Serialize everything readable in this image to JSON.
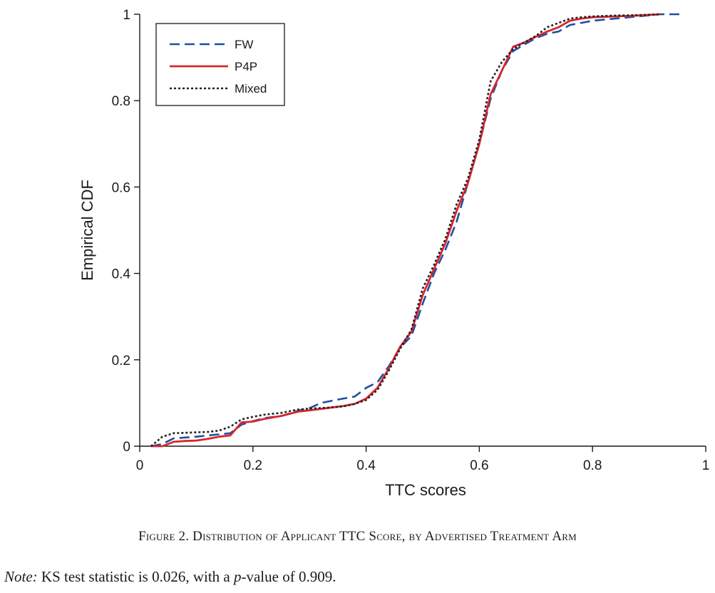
{
  "figure": {
    "caption": "Figure 2. Distribution of Applicant TTC Score, by Advertised Treatment Arm",
    "note_label": "Note:",
    "note_text_1": " KS test statistic is 0.026, with a ",
    "note_p": "p",
    "note_text_2": "-value of 0.909."
  },
  "chart_data": {
    "type": "line",
    "title": "",
    "xlabel": "TTC scores",
    "ylabel": "Empirical CDF",
    "xlim": [
      0,
      1
    ],
    "ylim": [
      0,
      1
    ],
    "xticks": [
      0,
      0.2,
      0.4,
      0.6,
      0.8,
      1
    ],
    "xtick_labels": [
      "0",
      "0.2",
      "0.4",
      "0.6",
      "0.8",
      "1"
    ],
    "yticks": [
      0,
      0.2,
      0.4,
      0.6,
      0.8,
      1
    ],
    "ytick_labels": [
      "0",
      "0.2",
      "0.4",
      "0.6",
      "0.8",
      "1"
    ],
    "grid": false,
    "legend_position": "top-left",
    "series": [
      {
        "name": "FW",
        "color": "#1f4fa3",
        "style": "dashed",
        "x": [
          0.02,
          0.04,
          0.06,
          0.1,
          0.13,
          0.16,
          0.18,
          0.2,
          0.22,
          0.25,
          0.28,
          0.3,
          0.32,
          0.35,
          0.38,
          0.4,
          0.42,
          0.44,
          0.46,
          0.48,
          0.5,
          0.52,
          0.54,
          0.56,
          0.58,
          0.6,
          0.62,
          0.64,
          0.66,
          0.68,
          0.7,
          0.72,
          0.74,
          0.76,
          0.78,
          0.8,
          0.84,
          0.88,
          0.92,
          0.96
        ],
        "y": [
          0.0,
          0.005,
          0.018,
          0.022,
          0.026,
          0.03,
          0.05,
          0.058,
          0.065,
          0.07,
          0.082,
          0.088,
          0.1,
          0.108,
          0.115,
          0.135,
          0.148,
          0.185,
          0.228,
          0.255,
          0.33,
          0.4,
          0.455,
          0.52,
          0.61,
          0.7,
          0.805,
          0.87,
          0.915,
          0.93,
          0.945,
          0.955,
          0.96,
          0.975,
          0.98,
          0.985,
          0.99,
          0.995,
          1.0,
          1.0
        ]
      },
      {
        "name": "P4P",
        "color": "#d8262e",
        "style": "solid",
        "x": [
          0.02,
          0.04,
          0.06,
          0.08,
          0.1,
          0.12,
          0.14,
          0.16,
          0.18,
          0.2,
          0.22,
          0.25,
          0.28,
          0.3,
          0.33,
          0.36,
          0.38,
          0.4,
          0.42,
          0.44,
          0.46,
          0.48,
          0.5,
          0.52,
          0.54,
          0.56,
          0.58,
          0.6,
          0.62,
          0.64,
          0.66,
          0.68,
          0.7,
          0.72,
          0.74,
          0.76,
          0.78,
          0.8,
          0.84,
          0.88,
          0.92
        ],
        "y": [
          0.0,
          0.0,
          0.01,
          0.012,
          0.013,
          0.017,
          0.022,
          0.025,
          0.055,
          0.057,
          0.063,
          0.07,
          0.08,
          0.083,
          0.088,
          0.093,
          0.098,
          0.11,
          0.135,
          0.18,
          0.23,
          0.265,
          0.35,
          0.41,
          0.47,
          0.545,
          0.61,
          0.7,
          0.815,
          0.87,
          0.925,
          0.935,
          0.948,
          0.96,
          0.97,
          0.985,
          0.99,
          0.993,
          0.995,
          0.997,
          1.0
        ]
      },
      {
        "name": "Mixed",
        "color": "#222222",
        "style": "dotted",
        "x": [
          0.02,
          0.04,
          0.06,
          0.08,
          0.1,
          0.12,
          0.14,
          0.16,
          0.18,
          0.2,
          0.22,
          0.25,
          0.28,
          0.3,
          0.33,
          0.36,
          0.38,
          0.4,
          0.42,
          0.44,
          0.46,
          0.48,
          0.5,
          0.52,
          0.54,
          0.56,
          0.58,
          0.6,
          0.62,
          0.64,
          0.66,
          0.68,
          0.7,
          0.72,
          0.74,
          0.76,
          0.78,
          0.8,
          0.84,
          0.88,
          0.92
        ],
        "y": [
          0.0,
          0.022,
          0.03,
          0.031,
          0.032,
          0.033,
          0.036,
          0.045,
          0.062,
          0.068,
          0.073,
          0.077,
          0.085,
          0.087,
          0.089,
          0.092,
          0.098,
          0.107,
          0.13,
          0.175,
          0.225,
          0.27,
          0.365,
          0.42,
          0.48,
          0.56,
          0.62,
          0.71,
          0.845,
          0.89,
          0.92,
          0.935,
          0.95,
          0.97,
          0.98,
          0.99,
          0.993,
          0.995,
          0.997,
          0.998,
          1.0
        ]
      }
    ]
  }
}
